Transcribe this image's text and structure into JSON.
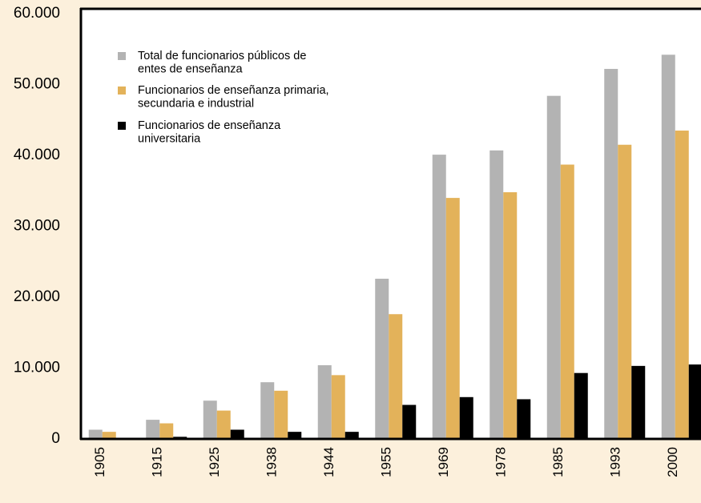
{
  "chart_data": {
    "type": "bar",
    "categories": [
      "1905",
      "1915",
      "1925",
      "1938",
      "1944",
      "1955",
      "1969",
      "1978",
      "1985",
      "1993",
      "2000"
    ],
    "series": [
      {
        "name": "Total de funcionarios públicos de entes de enseñanza",
        "color": "#b3b3b3",
        "values": [
          1300,
          2700,
          5400,
          8000,
          10400,
          22600,
          40100,
          40700,
          48400,
          52200,
          54200
        ]
      },
      {
        "name": "Funcionarios de enseñanza primaria, secundaria e industrial",
        "color": "#e3b25a",
        "values": [
          1000,
          2200,
          4000,
          6800,
          9000,
          17600,
          34000,
          34800,
          38700,
          41500,
          43500
        ]
      },
      {
        "name": "Funcionarios de enseñanza universitaria",
        "color": "#000000",
        "values": [
          100,
          300,
          1300,
          1000,
          1000,
          4800,
          5900,
          5600,
          9300,
          10300,
          10500
        ]
      }
    ],
    "ylim": [
      0,
      60000
    ],
    "yticks": [
      0,
      {
        "value": 10000,
        "label": "10.000"
      },
      {
        "value": 20000,
        "label": "20.000"
      },
      {
        "value": 30000,
        "label": "30.000"
      },
      {
        "value": 40000,
        "label": "40.000"
      },
      {
        "value": 50000,
        "label": "50.000"
      },
      {
        "value": 60000,
        "label": "60.000"
      }
    ],
    "legend": "upper left"
  }
}
